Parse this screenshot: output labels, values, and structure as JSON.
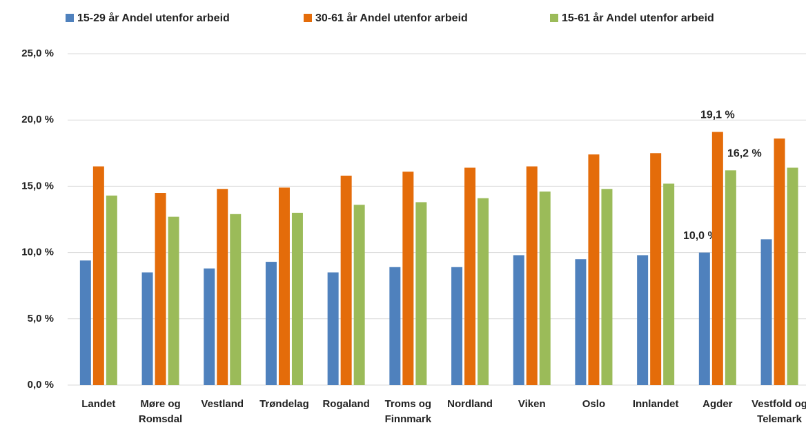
{
  "chart_data": {
    "type": "bar",
    "categories": [
      "Landet",
      "Møre og Romsdal",
      "Vestland",
      "Trøndelag",
      "Rogaland",
      "Troms og Finnmark",
      "Nordland",
      "Viken",
      "Oslo",
      "Innlandet",
      "Agder",
      "Vestfold og Telemark"
    ],
    "series": [
      {
        "name": "15-29 år Andel utenfor arbeid",
        "color": "#4f81bd",
        "values": [
          9.4,
          8.5,
          8.8,
          9.3,
          8.5,
          8.9,
          8.9,
          9.8,
          9.5,
          9.8,
          10.0,
          11.0
        ],
        "value_labels": [
          null,
          null,
          null,
          null,
          null,
          null,
          null,
          null,
          null,
          null,
          "10,0 %",
          null
        ]
      },
      {
        "name": "30-61 år Andel utenfor arbeid",
        "color": "#e46c0a",
        "values": [
          16.5,
          14.5,
          14.8,
          14.9,
          15.8,
          16.1,
          16.4,
          16.5,
          17.4,
          17.5,
          19.1,
          18.6
        ],
        "value_labels": [
          null,
          null,
          null,
          null,
          null,
          null,
          null,
          null,
          null,
          null,
          "19,1 %",
          null
        ]
      },
      {
        "name": "15-61 år Andel utenfor arbeid",
        "color": "#9bbb59",
        "values": [
          14.3,
          12.7,
          12.9,
          13.0,
          13.6,
          13.8,
          14.1,
          14.6,
          14.8,
          15.2,
          16.2,
          16.4
        ],
        "value_labels": [
          null,
          null,
          null,
          null,
          null,
          null,
          null,
          null,
          null,
          null,
          "16,2 %",
          null
        ]
      }
    ],
    "ylim": [
      0,
      25
    ],
    "yticks": [
      {
        "value": 0,
        "label": "0,0 %"
      },
      {
        "value": 5,
        "label": "5,0 %"
      },
      {
        "value": 10,
        "label": "10,0 %"
      },
      {
        "value": 15,
        "label": "15,0 %"
      },
      {
        "value": 20,
        "label": "20,0 %"
      },
      {
        "value": 25,
        "label": "25,0 %"
      }
    ],
    "grid": true,
    "legend": "top"
  }
}
